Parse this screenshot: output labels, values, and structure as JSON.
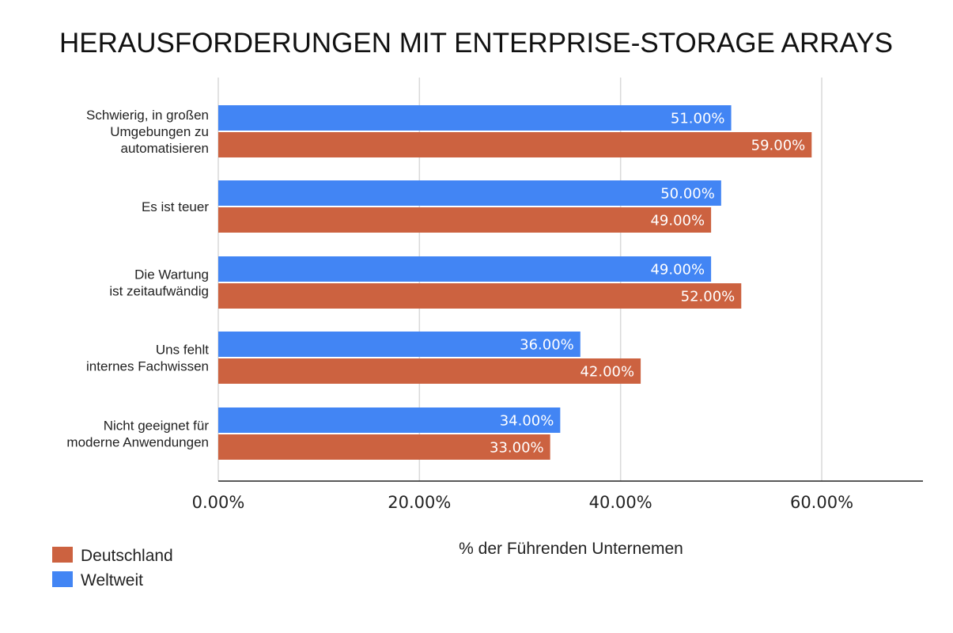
{
  "chart_data": {
    "type": "bar",
    "orientation": "horizontal",
    "title": "HERAUSFORDERUNGEN MIT ENTERPRISE-STORAGE ARRAYS",
    "xlabel": "% der Führenden Unternemen",
    "ylabel": "",
    "xlim": [
      0,
      70
    ],
    "x_ticks": [
      0,
      20,
      40,
      60
    ],
    "x_tick_labels": [
      "0.00%",
      "20.00%",
      "40.00%",
      "60.00%"
    ],
    "grid": true,
    "legend_position": "bottom-left",
    "categories": [
      [
        "Schwierig, in großen",
        "Umgebungen zu",
        "automatisieren"
      ],
      [
        "Es ist teuer"
      ],
      [
        "Die Wartung",
        "ist zeitaufwändig"
      ],
      [
        "Uns fehlt",
        "internes Fachwissen"
      ],
      [
        "Nicht geeignet für",
        "moderne Anwendungen"
      ]
    ],
    "series": [
      {
        "name": "Weltweit",
        "color": "#4285f4",
        "values": [
          51,
          50,
          49,
          36,
          34
        ],
        "labels": [
          "51.00%",
          "50.00%",
          "49.00%",
          "36.00%",
          "34.00%"
        ]
      },
      {
        "name": "Deutschland",
        "color": "#cc6240",
        "values": [
          59,
          49,
          52,
          42,
          33
        ],
        "labels": [
          "59.00%",
          "49.00%",
          "52.00%",
          "42.00%",
          "33.00%"
        ]
      }
    ],
    "legend_order": [
      "Deutschland",
      "Weltweit"
    ]
  },
  "colors": {
    "grid": "#d9d9d9",
    "axis": "#222222"
  }
}
